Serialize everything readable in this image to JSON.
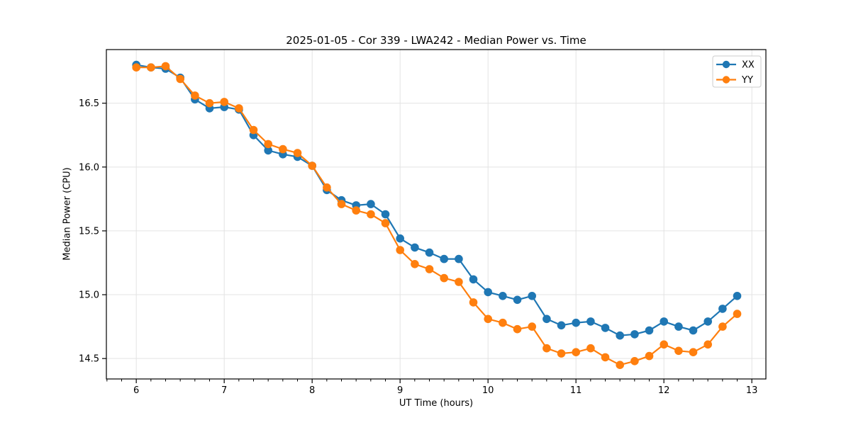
{
  "chart_data": {
    "type": "line",
    "title": "2025-01-05 - Cor 339 - LWA242 - Median Power vs. Time",
    "xlabel": "UT Time (hours)",
    "ylabel": "Median Power (CPU)",
    "xlim": [
      5.66,
      13.16
    ],
    "ylim": [
      14.34,
      16.92
    ],
    "x_ticks": [
      6,
      7,
      8,
      9,
      10,
      11,
      12,
      13
    ],
    "x_minor_tick_step": 0.166667,
    "y_ticks": [
      14.5,
      15.0,
      15.5,
      16.0,
      16.5
    ],
    "y_tick_labels": [
      "14.5",
      "15.0",
      "15.5",
      "16.0",
      "16.5"
    ],
    "grid": true,
    "grid_color": "#e3e3e3",
    "legend_position": "upper right",
    "x": [
      6.0,
      6.167,
      6.333,
      6.5,
      6.667,
      6.833,
      7.0,
      7.167,
      7.333,
      7.5,
      7.667,
      7.833,
      8.0,
      8.167,
      8.333,
      8.5,
      8.667,
      8.833,
      9.0,
      9.167,
      9.333,
      9.5,
      9.667,
      9.833,
      10.0,
      10.167,
      10.333,
      10.5,
      10.667,
      10.833,
      11.0,
      11.167,
      11.333,
      11.5,
      11.667,
      11.833,
      12.0,
      12.167,
      12.333,
      12.5,
      12.667,
      12.833
    ],
    "series": [
      {
        "name": "XX",
        "color": "#1f77b4",
        "values": [
          16.8,
          16.78,
          16.77,
          16.7,
          16.53,
          16.46,
          16.47,
          16.45,
          16.25,
          16.13,
          16.1,
          16.08,
          16.01,
          15.82,
          15.74,
          15.7,
          15.71,
          15.63,
          15.44,
          15.37,
          15.33,
          15.28,
          15.28,
          15.12,
          15.02,
          14.99,
          14.96,
          14.99,
          14.81,
          14.76,
          14.78,
          14.79,
          14.74,
          14.68,
          14.69,
          14.72,
          14.79,
          14.75,
          14.72,
          14.79,
          14.89,
          14.99
        ]
      },
      {
        "name": "YY",
        "color": "#ff7f0e",
        "values": [
          16.78,
          16.78,
          16.79,
          16.69,
          16.56,
          16.5,
          16.51,
          16.46,
          16.29,
          16.18,
          16.14,
          16.11,
          16.01,
          15.84,
          15.71,
          15.66,
          15.63,
          15.56,
          15.35,
          15.24,
          15.2,
          15.13,
          15.1,
          14.94,
          14.81,
          14.78,
          14.73,
          14.75,
          14.58,
          14.54,
          14.55,
          14.58,
          14.51,
          14.45,
          14.48,
          14.52,
          14.61,
          14.56,
          14.55,
          14.61,
          14.75,
          14.85
        ]
      }
    ]
  },
  "colors": {
    "series_xx": "#1f77b4",
    "series_yy": "#ff7f0e",
    "grid": "#e3e3e3",
    "axis": "#000000",
    "legend_border": "#cccccc"
  }
}
